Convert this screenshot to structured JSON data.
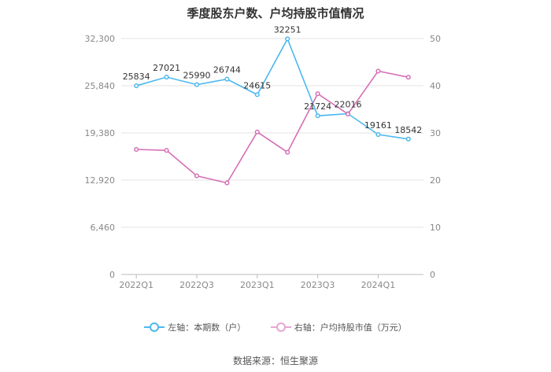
{
  "chart_data": {
    "type": "line",
    "title": "季度股东户数、户均持股市值情况",
    "categories": [
      "2022Q1",
      "2022Q2",
      "2022Q3",
      "2022Q4",
      "2023Q1",
      "2023Q2",
      "2023Q3",
      "2023Q4",
      "2024Q1",
      "2024Q2"
    ],
    "x_tick_labels": [
      "2022Q1",
      "2022Q3",
      "2023Q1",
      "2023Q3",
      "2024Q1"
    ],
    "y_left": {
      "ylim": [
        0,
        32300
      ],
      "ticks": [
        "0",
        "6,460",
        "12,920",
        "19,380",
        "25,840",
        "32,300"
      ]
    },
    "y_right": {
      "ylim": [
        0,
        50
      ],
      "ticks": [
        "0",
        "10",
        "20",
        "30",
        "40",
        "50"
      ]
    },
    "series": [
      {
        "name": "左轴：本期数（户）",
        "axis": "left",
        "color": "#4db8ef",
        "values": [
          25834,
          27021,
          25990,
          26744,
          24615,
          32251,
          21724,
          22016,
          19161,
          18542
        ],
        "labels": [
          "25834",
          "27021",
          "25990",
          "26744",
          "24615",
          "32251",
          "21724",
          "22016",
          "19161",
          "18542"
        ]
      },
      {
        "name": "右轴：户均持股市值（万元）",
        "axis": "right",
        "color": "#d76fb5",
        "values": [
          26.5,
          26.3,
          20.9,
          19.4,
          30.2,
          25.9,
          38.3,
          34.0,
          43.1,
          41.8
        ]
      }
    ],
    "grid": true,
    "legend_position": "bottom"
  },
  "source": "数据来源：恒生聚源"
}
